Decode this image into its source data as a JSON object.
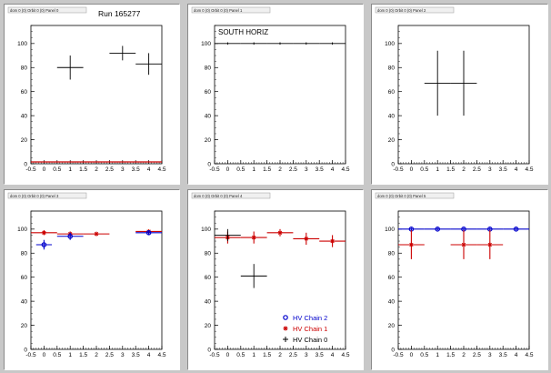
{
  "chart_data": [
    {
      "type": "scatter",
      "pad_title": "dom 0 (0) Orbit 0 (0) Panel 0",
      "title": "Run 165277",
      "xlim": [
        -0.5,
        4.5
      ],
      "ylim": [
        0,
        115
      ],
      "x_ticks": [
        "-0.5",
        "0",
        "0.5",
        "1",
        "1.5",
        "2",
        "2.5",
        "3",
        "3.5",
        "4",
        "4.5"
      ],
      "y_ticks": [
        "0",
        "20",
        "40",
        "60",
        "80",
        "100"
      ],
      "series": [
        {
          "color": "#000000",
          "marker": "cross",
          "points": [
            {
              "x": 1,
              "y": 80,
              "xerr": 0.5,
              "yerr": 10
            },
            {
              "x": 3,
              "y": 92,
              "xerr": 0.5,
              "yerr": 6
            },
            {
              "x": 4,
              "y": 83,
              "xerr": 0.5,
              "yerr": 9
            }
          ]
        },
        {
          "color": "#cc0000",
          "marker": "line",
          "points": [
            {
              "x": -0.5,
              "y": 1.5
            },
            {
              "x": 4.5,
              "y": 1.5
            }
          ]
        }
      ]
    },
    {
      "type": "scatter",
      "pad_title": "dom 0 (0) Orbit 0 (0) Panel 1",
      "title": "SOUTH HORIZ",
      "xlim": [
        -0.5,
        4.5
      ],
      "ylim": [
        0,
        115
      ],
      "x_ticks": [
        "-0.5",
        "0",
        "0.5",
        "1",
        "1.5",
        "2",
        "2.5",
        "3",
        "3.5",
        "4",
        "4.5"
      ],
      "y_ticks": [
        "0",
        "20",
        "40",
        "60",
        "80",
        "100"
      ],
      "series": [
        {
          "color": "#000000",
          "marker": "cross",
          "points": [
            {
              "x": 0,
              "y": 100,
              "xerr": 0.5,
              "yerr": 1
            },
            {
              "x": 1,
              "y": 100,
              "xerr": 0.5,
              "yerr": 1
            },
            {
              "x": 2,
              "y": 100,
              "xerr": 0.5,
              "yerr": 1
            },
            {
              "x": 3,
              "y": 100,
              "xerr": 0.5,
              "yerr": 1
            },
            {
              "x": 4,
              "y": 100,
              "xerr": 0.5,
              "yerr": 1
            }
          ]
        }
      ]
    },
    {
      "type": "scatter",
      "pad_title": "dom 0 (0) Orbit 0 (0) Panel 2",
      "title": "",
      "xlim": [
        -0.5,
        4.5
      ],
      "ylim": [
        0,
        115
      ],
      "x_ticks": [
        "-0.5",
        "0",
        "0.5",
        "1",
        "1.5",
        "2",
        "2.5",
        "3",
        "3.5",
        "4",
        "4.5"
      ],
      "y_ticks": [
        "0",
        "20",
        "40",
        "60",
        "80",
        "100"
      ],
      "series": [
        {
          "color": "#000000",
          "marker": "cross",
          "points": [
            {
              "x": 1,
              "y": 67,
              "xerr": 0.5,
              "yerr": 27
            },
            {
              "x": 2,
              "y": 67,
              "xerr": 0.5,
              "yerr": 27
            }
          ]
        }
      ]
    },
    {
      "type": "scatter",
      "pad_title": "dom 0 (0) Orbit 0 (0) Panel 3",
      "title": "",
      "xlim": [
        -0.5,
        4.5
      ],
      "ylim": [
        0,
        115
      ],
      "x_ticks": [
        "-0.5",
        "0",
        "0.5",
        "1",
        "1.5",
        "2",
        "2.5",
        "3",
        "3.5",
        "4",
        "4.5"
      ],
      "y_ticks": [
        "0",
        "20",
        "40",
        "60",
        "80",
        "100"
      ],
      "series": [
        {
          "color": "#cc0000",
          "marker": "star",
          "points": [
            {
              "x": 0,
              "y": 97,
              "xerr": 0.5,
              "yerr": 2
            },
            {
              "x": 1,
              "y": 96,
              "xerr": 0.5,
              "yerr": 2
            },
            {
              "x": 2,
              "y": 96,
              "xerr": 0.5,
              "yerr": 1
            },
            {
              "x": 4,
              "y": 98,
              "xerr": 0.5,
              "yerr": 1
            }
          ]
        },
        {
          "color": "#0000cc",
          "marker": "circle",
          "points": [
            {
              "x": 0,
              "y": 87,
              "xerr": 0.3,
              "yerr": 4
            },
            {
              "x": 1,
              "y": 94,
              "xerr": 0.5,
              "yerr": 3
            },
            {
              "x": 4,
              "y": 97,
              "xerr": 0.5,
              "yerr": 2
            }
          ]
        }
      ]
    },
    {
      "type": "scatter",
      "pad_title": "dom 0 (0) Orbit 0 (0) Panel 4",
      "title": "",
      "xlim": [
        -0.5,
        4.5
      ],
      "ylim": [
        0,
        115
      ],
      "x_ticks": [
        "-0.5",
        "0",
        "0.5",
        "1",
        "1.5",
        "2",
        "2.5",
        "3",
        "3.5",
        "4",
        "4.5"
      ],
      "y_ticks": [
        "0",
        "20",
        "40",
        "60",
        "80",
        "100"
      ],
      "legend": {
        "placement": "bottom-right",
        "entries": [
          {
            "label": "HV Chain 2",
            "color": "#0000cc",
            "marker": "circle"
          },
          {
            "label": "HV Chain 1",
            "color": "#cc0000",
            "marker": "star"
          },
          {
            "label": "HV Chain 0",
            "color": "#000000",
            "marker": "cross"
          }
        ]
      },
      "series": [
        {
          "color": "#cc0000",
          "marker": "star",
          "points": [
            {
              "x": 0,
              "y": 93,
              "xerr": 0.5,
              "yerr": 5
            },
            {
              "x": 1,
              "y": 93,
              "xerr": 0.5,
              "yerr": 5
            },
            {
              "x": 2,
              "y": 97,
              "xerr": 0.5,
              "yerr": 3
            },
            {
              "x": 3,
              "y": 92,
              "xerr": 0.5,
              "yerr": 5
            },
            {
              "x": 4,
              "y": 90,
              "xerr": 0.5,
              "yerr": 5
            }
          ]
        },
        {
          "color": "#000000",
          "marker": "cross",
          "points": [
            {
              "x": 0,
              "y": 95,
              "xerr": 0.5,
              "yerr": 5
            },
            {
              "x": 1,
              "y": 61,
              "xerr": 0.5,
              "yerr": 10
            }
          ]
        }
      ]
    },
    {
      "type": "scatter",
      "pad_title": "dom 0 (0) Orbit 0 (0) Panel 5",
      "title": "",
      "xlim": [
        -0.5,
        4.5
      ],
      "ylim": [
        0,
        115
      ],
      "x_ticks": [
        "-0.5",
        "0",
        "0.5",
        "1",
        "1.5",
        "2",
        "2.5",
        "3",
        "3.5",
        "4",
        "4.5"
      ],
      "y_ticks": [
        "0",
        "20",
        "40",
        "60",
        "80",
        "100"
      ],
      "series": [
        {
          "color": "#0000cc",
          "marker": "circle",
          "points": [
            {
              "x": 0,
              "y": 100,
              "xerr": 0.5,
              "yerr": 1
            },
            {
              "x": 1,
              "y": 100,
              "xerr": 0.5,
              "yerr": 1
            },
            {
              "x": 2,
              "y": 100,
              "xerr": 0.5,
              "yerr": 1
            },
            {
              "x": 3,
              "y": 100,
              "xerr": 0.5,
              "yerr": 1
            },
            {
              "x": 4,
              "y": 100,
              "xerr": 0.5,
              "yerr": 1
            }
          ]
        },
        {
          "color": "#cc0000",
          "marker": "star",
          "points": [
            {
              "x": 0,
              "y": 87,
              "xerr": 0.5,
              "yerr": 12
            },
            {
              "x": 2,
              "y": 87,
              "xerr": 0.5,
              "yerr": 12
            },
            {
              "x": 3,
              "y": 87,
              "xerr": 0.5,
              "yerr": 12
            }
          ]
        }
      ]
    }
  ]
}
